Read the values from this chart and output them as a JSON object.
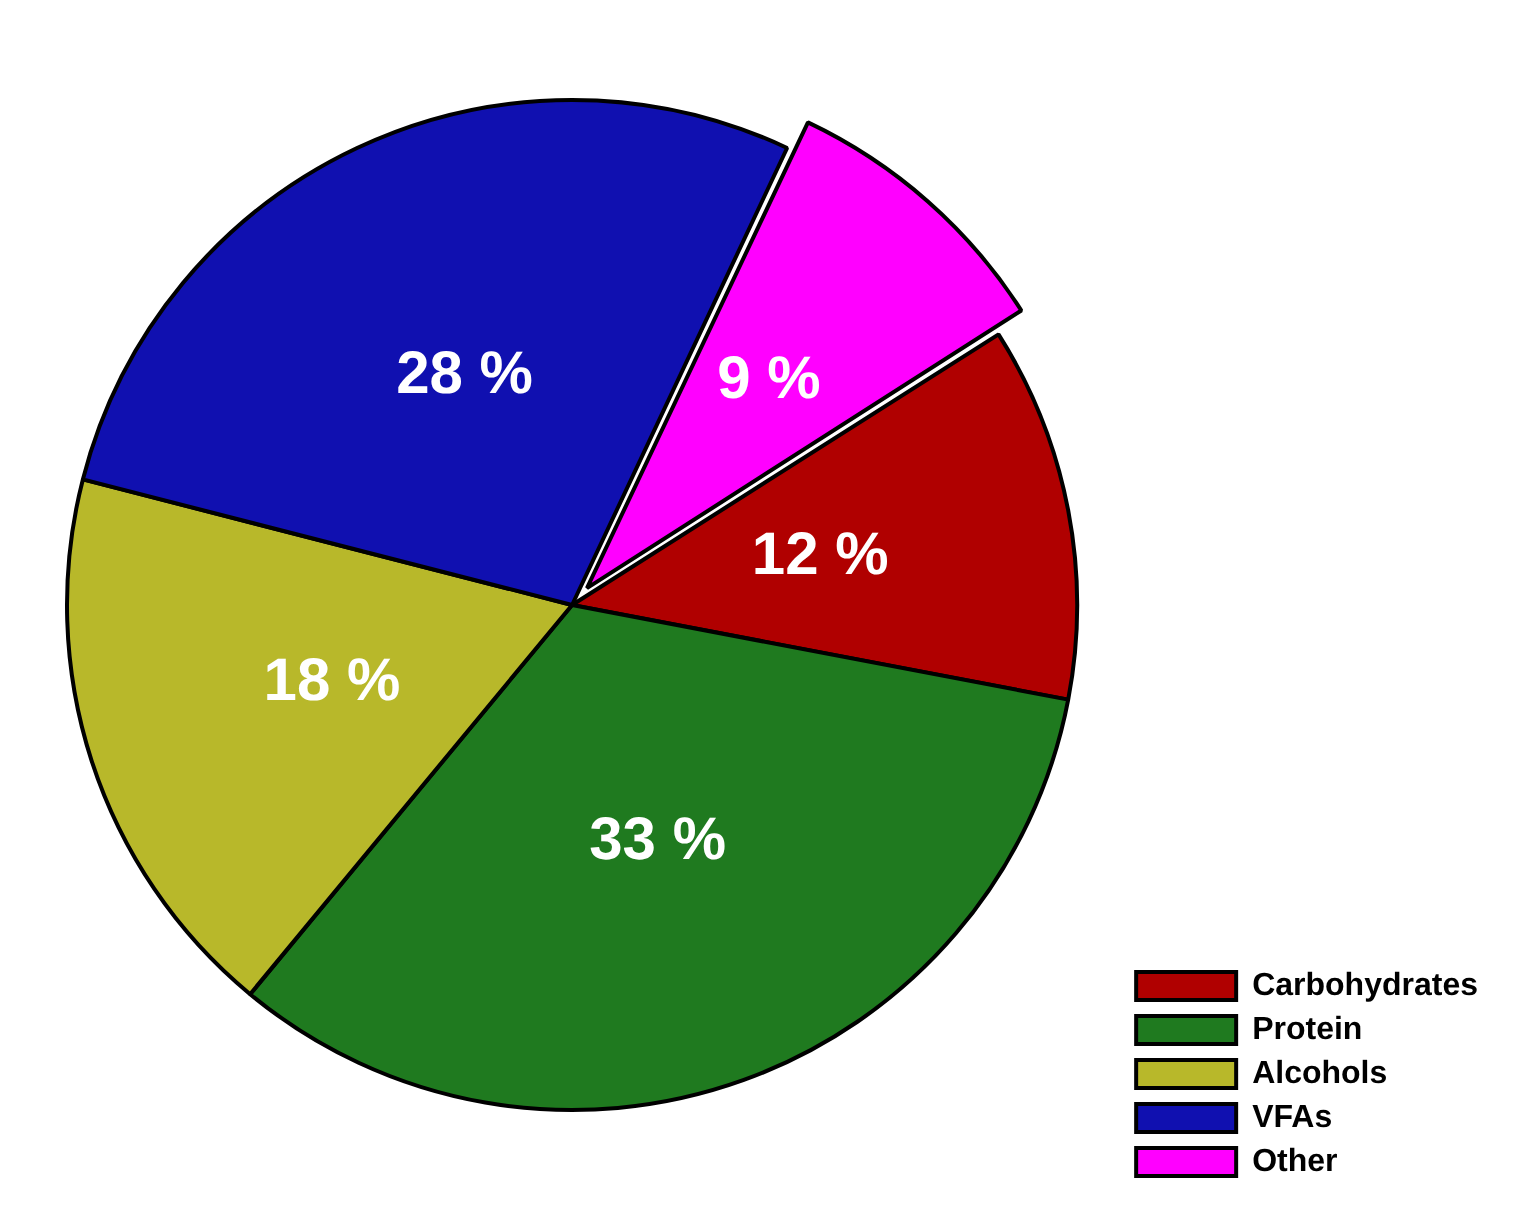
{
  "chart_data": {
    "type": "pie",
    "categories": [
      "Carbohydrates",
      "Protein",
      "Alcohols",
      "VFAs",
      "Other"
    ],
    "values": [
      12,
      33,
      18,
      28,
      9
    ],
    "colors": [
      "#b00000",
      "#1f7a1f",
      "#b8b82a",
      "#1010b0",
      "#ff00ff"
    ],
    "value_labels": [
      "12 %",
      "33 %",
      "18 %",
      "28 %",
      "9 %"
    ],
    "legend": "bottom right"
  }
}
